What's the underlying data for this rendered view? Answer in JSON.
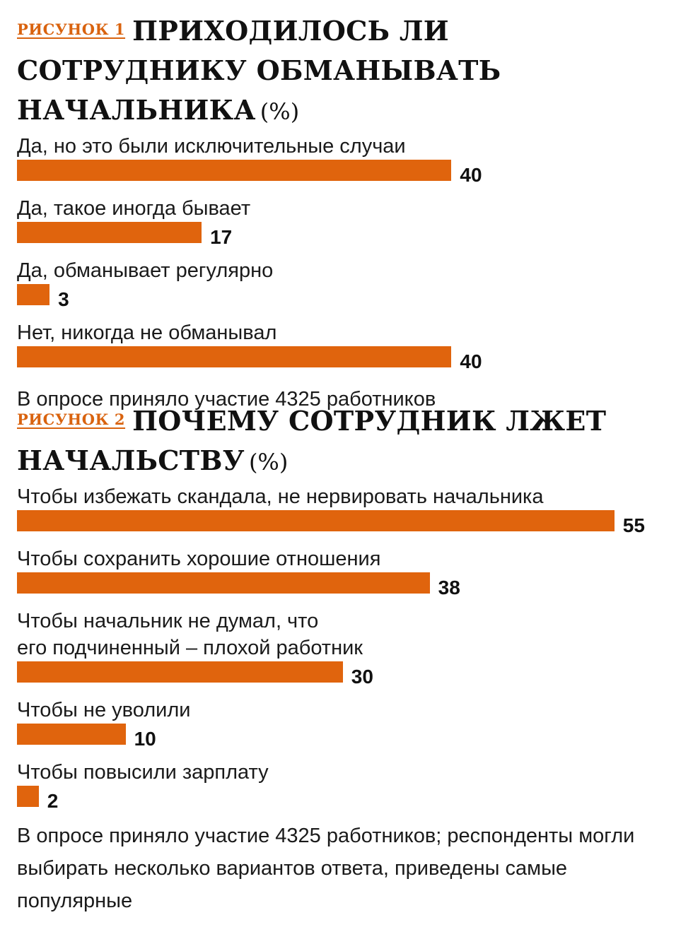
{
  "chart_data": [
    {
      "type": "bar",
      "tag": "РИСУНОК 1",
      "title": "ПРИХОДИЛОСЬ ЛИ СОТРУДНИКУ ОБМАНЫВАТЬ НАЧАЛЬНИКА",
      "unit": "(%)",
      "categories": [
        "Да, но это были исключительные случаи",
        "Да, такое иногда бывает",
        "Да, обманывает регулярно",
        "Нет, никогда не обманывал"
      ],
      "values": [
        40,
        17,
        3,
        40
      ],
      "note": "В опросе приняло участие 4325 работников",
      "bar_color": "#e0640d",
      "orientation": "horizontal"
    },
    {
      "type": "bar",
      "tag": "РИСУНОК 2",
      "title": "ПОЧЕМУ СОТРУДНИК ЛЖЕТ НАЧАЛЬСТВУ",
      "unit": "(%)",
      "categories": [
        "Чтобы избежать скандала, не нервировать начальника",
        "Чтобы сохранить хорошие отношения",
        "Чтобы начальник не думал, что\nего подчиненный – плохой работник",
        "Чтобы не уволили",
        "Чтобы повысили зарплату"
      ],
      "values": [
        55,
        38,
        30,
        10,
        2
      ],
      "note": "В опросе приняло участие 4325 работников; респонденты могли выбирать несколько вариантов ответа, приведены самые популярные",
      "bar_color": "#e0640d",
      "orientation": "horizontal"
    }
  ]
}
